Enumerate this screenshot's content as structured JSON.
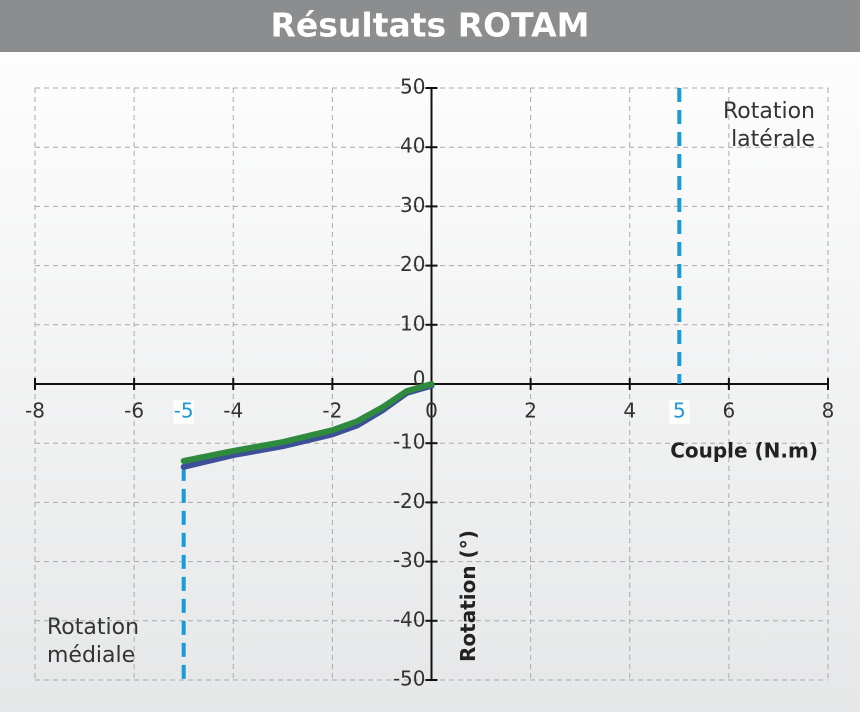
{
  "chart_data": {
    "type": "line",
    "title": "Résultats ROTAM",
    "x_label": "Couple (N.m)",
    "y_label": "Rotation (°)",
    "x": [
      -5,
      -4,
      -3,
      -2,
      -1.5,
      -1,
      -0.5,
      0
    ],
    "series": [
      {
        "color": "#3d4f96",
        "values": [
          -14,
          -12,
          -10.5,
          -8.5,
          -7,
          -4.5,
          -1.5,
          -0.3
        ]
      },
      {
        "color": "#2e8b3e",
        "values": [
          -13,
          -11.3,
          -9.8,
          -7.8,
          -6.3,
          -4,
          -1.2,
          0
        ]
      }
    ],
    "xlim": [
      -8,
      8
    ],
    "xticks": [
      -8,
      -6,
      -4,
      -2,
      0,
      2,
      4,
      6,
      8
    ],
    "ylim": [
      -50,
      50
    ],
    "yticks": [
      50,
      40,
      30,
      20,
      10,
      0,
      -10,
      -20,
      -30,
      -40,
      -50
    ],
    "grid": true,
    "reference_lines": [
      {
        "value": -5,
        "color": "#1a9ad6",
        "annotation": [
          "Rotation",
          "médiale"
        ]
      },
      {
        "value": 5,
        "color": "#1a9ad6",
        "annotation": [
          "Rotation",
          "latérale"
        ]
      }
    ]
  }
}
